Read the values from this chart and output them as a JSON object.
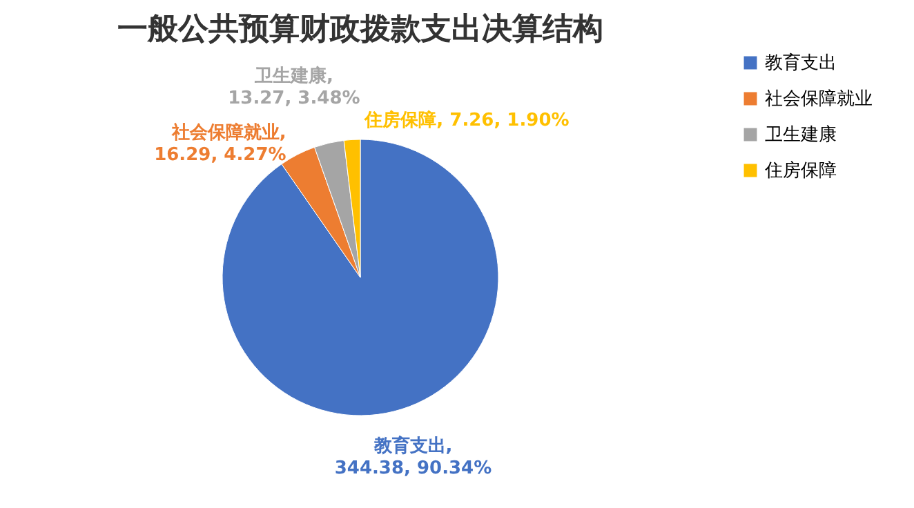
{
  "chart_data": {
    "type": "pie",
    "title": "一般公共预算财政拨款支出决算结构",
    "categories": [
      "教育支出",
      "社会保障就业",
      "卫生建康",
      "住房保障"
    ],
    "values": [
      344.38,
      16.29,
      13.27,
      7.26
    ],
    "colors": [
      "#4472c4",
      "#ed7d31",
      "#a5a5a5",
      "#ffc000"
    ],
    "value_labels": [
      "教育支出, 344.38, 90.34%",
      "社会保障就业, 16.29, 4.27%",
      "卫生建康, 13.27, 3.48%",
      "住房保障, 7.26, 1.90%"
    ],
    "legend": "right"
  }
}
